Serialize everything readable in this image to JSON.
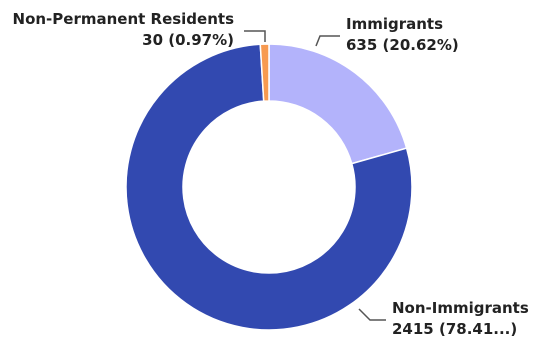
{
  "chart_data": {
    "type": "pie",
    "variant": "donut",
    "legend": "none",
    "categories": [
      "Immigrants",
      "Non-Immigrants",
      "Non-Permanent Residents"
    ],
    "values": [
      635,
      2415,
      30
    ],
    "data_labels": [
      "635 (20.62%)",
      "2415 (78.41...)",
      "30 (0.97%)"
    ],
    "colors": [
      "#b3b3fb",
      "#3249b0",
      "#f79a50"
    ]
  }
}
